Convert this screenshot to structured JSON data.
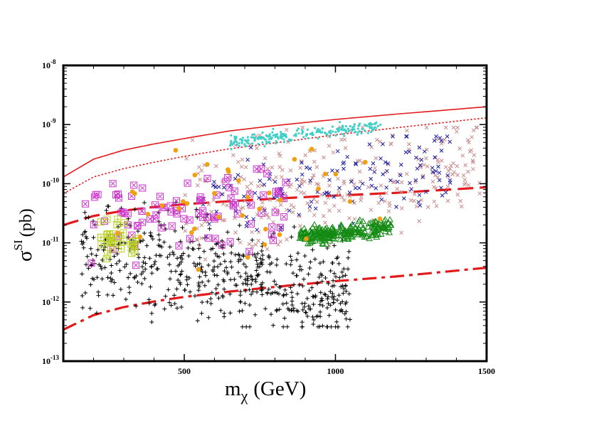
{
  "chart_data": {
    "type": "scatter",
    "title": "",
    "xlabel": {
      "base": "m",
      "sub": "χ",
      "unit": "(GeV)"
    },
    "ylabel": {
      "base": "σ",
      "sup": "SI",
      "unit": "(pb)"
    },
    "xlim": [
      100,
      1500
    ],
    "ylim": [
      1e-13,
      1e-08
    ],
    "yscale": "log",
    "grid": false,
    "legend": "none",
    "x_ticks": [
      500,
      1000,
      1500
    ],
    "y_ticks": [
      {
        "value": 1e-13,
        "mant": "10",
        "exp": "-13"
      },
      {
        "value": 1e-12,
        "mant": "10",
        "exp": "-12"
      },
      {
        "value": 1e-11,
        "mant": "10",
        "exp": "-11"
      },
      {
        "value": 1e-10,
        "mant": "10",
        "exp": "-10"
      },
      {
        "value": 1e-09,
        "mant": "10",
        "exp": "-9"
      },
      {
        "value": 1e-08,
        "mant": "10",
        "exp": "-8"
      }
    ],
    "curves": [
      {
        "name": "limit-solid",
        "style": "solid",
        "color": "#e31a1c",
        "width": 1.6,
        "x": [
          100,
          200,
          300,
          400,
          500,
          650,
          800,
          1000,
          1200,
          1500
        ],
        "y": [
          1.3e-10,
          2.6e-10,
          3.7e-10,
          4.7e-10,
          5.8e-10,
          7.8e-10,
          9.6e-10,
          1.22e-09,
          1.5e-09,
          2e-09
        ]
      },
      {
        "name": "limit-dotted",
        "style": "dotted",
        "color": "#e31a1c",
        "width": 1.6,
        "x": [
          100,
          200,
          300,
          400,
          500,
          650,
          800,
          1000,
          1200,
          1500
        ],
        "y": [
          6.8e-11,
          1.3e-10,
          1.8e-10,
          2.3e-10,
          2.9e-10,
          3.9e-10,
          4.9e-10,
          6.7e-10,
          8.8e-10,
          1.3e-09
        ]
      },
      {
        "name": "limit-long-dashed",
        "style": "longdash",
        "color": "#e31a1c",
        "width": 3.2,
        "x": [
          100,
          200,
          300,
          400,
          500,
          650,
          800,
          1000,
          1200,
          1500
        ],
        "y": [
          2e-11,
          2.85e-11,
          3.5e-11,
          4.05e-11,
          4.5e-11,
          5.05e-11,
          5.6e-11,
          6.3e-11,
          7e-11,
          8.7e-11
        ]
      },
      {
        "name": "limit-dash-dot",
        "style": "dashdot",
        "color": "#e31a1c",
        "width": 3.2,
        "x": [
          100,
          200,
          300,
          400,
          500,
          650,
          800,
          1000,
          1200,
          1500
        ],
        "y": [
          3.4e-13,
          6e-13,
          8.2e-13,
          1.02e-12,
          1.22e-12,
          1.5e-12,
          1.8e-12,
          2.25e-12,
          2.7e-12,
          3.8e-12
        ]
      }
    ],
    "scatter_series": [
      {
        "name": "black-plus",
        "marker": "plus",
        "color": "#000000",
        "count": 560,
        "x_range": [
          160,
          1050
        ],
        "log_mid_start": -11.2,
        "log_mid_end": -11.85,
        "log_spread": 0.42,
        "clip_log": [
          -12.42,
          -10.05
        ]
      },
      {
        "name": "pink-cross",
        "marker": "x",
        "color": "#c98c8c",
        "count": 300,
        "x_range": [
          500,
          1480
        ],
        "log_mid_start": -10.4,
        "log_mid_end": -9.55,
        "log_spread": 0.45,
        "clip_log": [
          -11.3,
          -9.05
        ]
      },
      {
        "name": "blue-cross",
        "marker": "x",
        "color": "#1c1ca0",
        "count": 140,
        "x_range": [
          560,
          1380
        ],
        "log_mid_start": -10.3,
        "log_mid_end": -9.6,
        "log_spread": 0.4,
        "clip_log": [
          -11.15,
          -9.2
        ]
      },
      {
        "name": "cyan-dot",
        "marker": "dot",
        "color": "#40d0c8",
        "count": 220,
        "x_range": [
          650,
          1150
        ],
        "log_mid_start": -9.3,
        "log_mid_end": -9.02,
        "log_spread": 0.05,
        "clip_log": [
          -9.45,
          -8.95
        ]
      },
      {
        "name": "green-triangle",
        "marker": "triangle",
        "color": "#138a13",
        "count": 230,
        "x_range": [
          880,
          1185
        ],
        "log_mid_start": -10.9,
        "log_mid_end": -10.72,
        "log_spread": 0.07,
        "clip_log": [
          -11.1,
          -10.55
        ]
      },
      {
        "name": "magenta-square",
        "marker": "boxx",
        "color": "#cc33cc",
        "count": 95,
        "x_range": [
          165,
          840
        ],
        "log_mid_start": -10.75,
        "log_mid_end": -10.4,
        "log_spread": 0.4,
        "clip_log": [
          -11.95,
          -9.75
        ]
      },
      {
        "name": "yellowgreen-square",
        "marker": "boxplus",
        "color": "#b8d020",
        "count": 35,
        "x_range": [
          220,
          340
        ],
        "log_mid_start": -10.85,
        "log_mid_end": -11.0,
        "log_spread": 0.15,
        "clip_log": [
          -11.3,
          -10.6
        ]
      },
      {
        "name": "orange-dot",
        "marker": "circle",
        "color": "#f0a010",
        "count": 38,
        "x_range": [
          230,
          1150
        ],
        "log_mid_start": -10.7,
        "log_mid_end": -10.1,
        "log_spread": 0.5,
        "clip_log": [
          -12.05,
          -9.25
        ]
      }
    ]
  }
}
